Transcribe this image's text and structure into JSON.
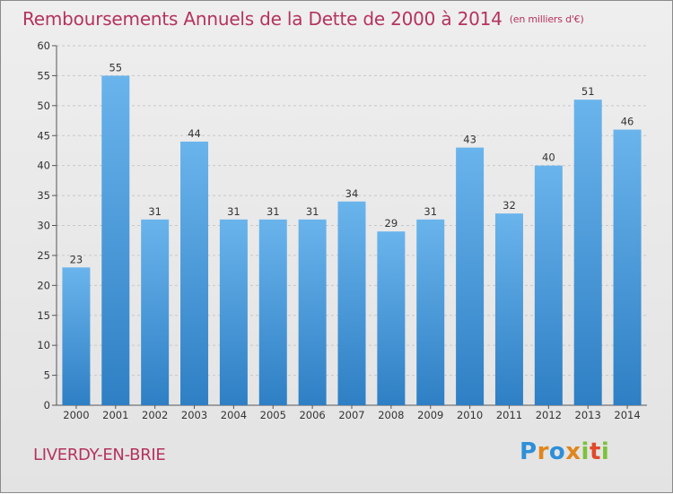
{
  "chart_data": {
    "type": "bar",
    "title": "Remboursements Annuels de la Dette de 2000 à 2014",
    "unit": "(en milliers d'€)",
    "categories": [
      "2000",
      "2001",
      "2002",
      "2003",
      "2004",
      "2005",
      "2006",
      "2007",
      "2008",
      "2009",
      "2010",
      "2011",
      "2012",
      "2013",
      "2014"
    ],
    "values": [
      23,
      55,
      31,
      44,
      31,
      31,
      31,
      34,
      29,
      31,
      43,
      32,
      40,
      51,
      46
    ],
    "ylim": [
      0,
      60
    ],
    "yticks": [
      0,
      5,
      10,
      15,
      20,
      25,
      30,
      35,
      40,
      45,
      50,
      55,
      60
    ],
    "grid": true,
    "bar_color_top": "#6ab4ec",
    "bar_color_bottom": "#2e7fc4"
  },
  "commune": "LIVERDY-EN-BRIE",
  "brand": {
    "letters": [
      "P",
      "r",
      "o",
      "x",
      "i",
      "t",
      "i"
    ],
    "colors": [
      "#2e8fd8",
      "#e0861d",
      "#2e8fd8",
      "#e0861d",
      "#7cc23a",
      "#e04a2c",
      "#7cc23a"
    ]
  }
}
